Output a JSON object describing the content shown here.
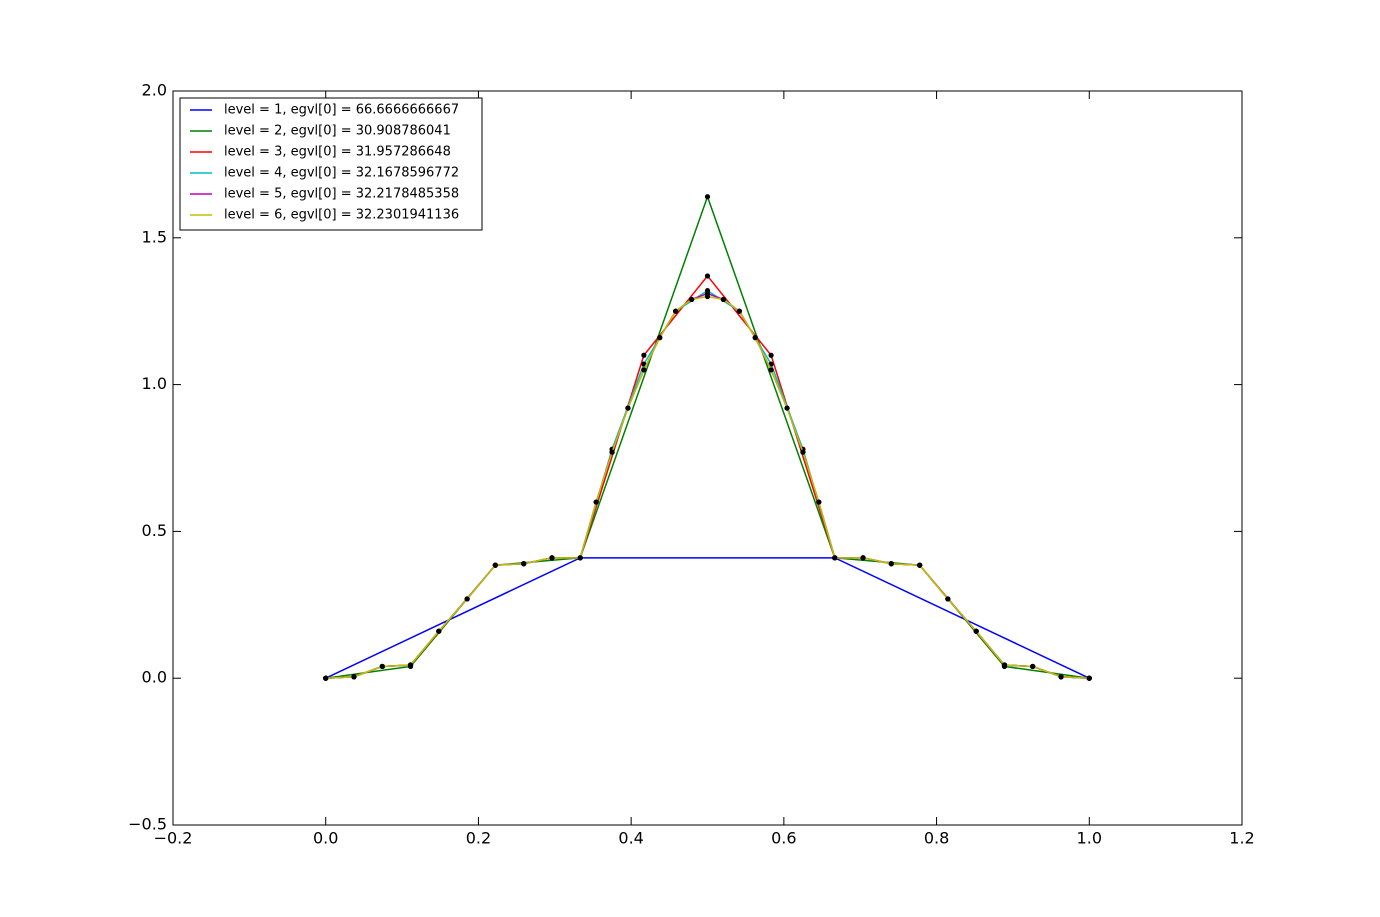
{
  "chart_data": {
    "type": "line",
    "xlim": [
      -0.2,
      1.2
    ],
    "ylim": [
      -0.5,
      2.0
    ],
    "xticks": [
      {
        "value": -0.2,
        "label": "−0.2"
      },
      {
        "value": 0,
        "label": "0.0"
      },
      0.2,
      0.4,
      0.6,
      0.8,
      {
        "value": 1,
        "label": "1.0"
      },
      1.2
    ],
    "yticks": [
      {
        "value": -0.5,
        "label": "−0.5"
      },
      {
        "value": 0,
        "label": "0.0"
      },
      0.5,
      {
        "value": 1,
        "label": "1.0"
      },
      1.5,
      {
        "value": 2,
        "label": "2.0"
      }
    ],
    "legend": "upper left",
    "marker_color": "#000000",
    "series": [
      {
        "name": "level = 1, egvl[0] = 66.6666666667",
        "color": "#0000ff",
        "x": [
          0,
          0.3333,
          0.6667,
          1
        ],
        "values": [
          0,
          0.41,
          0.41,
          0
        ]
      },
      {
        "name": "level = 2, egvl[0] = 30.908786041",
        "color": "#008000",
        "x": [
          0,
          0.1111,
          0.2222,
          0.3333,
          0.5,
          0.6667,
          0.7778,
          0.8889,
          1
        ],
        "values": [
          0,
          0.04,
          0.385,
          0.41,
          1.64,
          0.41,
          0.385,
          0.04,
          0
        ]
      },
      {
        "name": "level = 3, egvl[0] = 31.957286648",
        "color": "#ff0000",
        "x": [
          0,
          0.037,
          0.0741,
          0.1111,
          0.2222,
          0.2593,
          0.2963,
          0.3333,
          0.4167,
          0.5,
          0.5833,
          0.6667,
          0.7037,
          0.7407,
          0.7778,
          0.8889,
          0.9259,
          0.963,
          1
        ],
        "values": [
          0,
          0.005,
          0.04,
          0.045,
          0.385,
          0.39,
          0.41,
          0.41,
          1.1,
          1.37,
          1.1,
          0.41,
          0.41,
          0.39,
          0.385,
          0.045,
          0.04,
          0.005,
          0
        ]
      },
      {
        "name": "level = 4, egvl[0] = 32.1678596772",
        "color": "#00bfbf",
        "x": [
          0,
          0.037,
          0.0741,
          0.1111,
          0.1481,
          0.1852,
          0.2222,
          0.2593,
          0.2963,
          0.3333,
          0.375,
          0.4167,
          0.4583,
          0.5,
          0.5417,
          0.5833,
          0.625,
          0.6667,
          0.7037,
          0.7407,
          0.7778,
          0.8148,
          0.8519,
          0.8889,
          0.9259,
          0.963,
          1
        ],
        "values": [
          0,
          0.005,
          0.04,
          0.045,
          0.16,
          0.27,
          0.385,
          0.39,
          0.41,
          0.41,
          0.78,
          1.07,
          1.25,
          1.32,
          1.25,
          1.07,
          0.78,
          0.41,
          0.41,
          0.39,
          0.385,
          0.27,
          0.16,
          0.045,
          0.04,
          0.005,
          0
        ]
      },
      {
        "name": "level = 5, egvl[0] = 32.2178485358",
        "color": "#bf00bf",
        "x": [
          0,
          0.037,
          0.0741,
          0.1111,
          0.1481,
          0.1852,
          0.2222,
          0.2593,
          0.2963,
          0.3333,
          0.3542,
          0.375,
          0.3958,
          0.4167,
          0.4375,
          0.4583,
          0.4792,
          0.5,
          0.5208,
          0.5417,
          0.5625,
          0.5833,
          0.6042,
          0.625,
          0.6458,
          0.6667,
          0.7037,
          0.7407,
          0.7778,
          0.8148,
          0.8519,
          0.8889,
          0.9259,
          0.963,
          1
        ],
        "values": [
          0,
          0.005,
          0.04,
          0.045,
          0.16,
          0.27,
          0.385,
          0.39,
          0.41,
          0.41,
          0.6,
          0.77,
          0.92,
          1.05,
          1.16,
          1.25,
          1.29,
          1.31,
          1.29,
          1.25,
          1.16,
          1.05,
          0.92,
          0.77,
          0.6,
          0.41,
          0.41,
          0.39,
          0.385,
          0.27,
          0.16,
          0.045,
          0.04,
          0.005,
          0
        ]
      },
      {
        "name": "level = 6, egvl[0] = 32.2301941136",
        "color": "#bfbf00",
        "x": [
          0,
          0.037,
          0.0741,
          0.1111,
          0.1481,
          0.1852,
          0.2222,
          0.2593,
          0.2963,
          0.3333,
          0.3542,
          0.375,
          0.3958,
          0.4167,
          0.4375,
          0.4583,
          0.4792,
          0.5,
          0.5208,
          0.5417,
          0.5625,
          0.5833,
          0.6042,
          0.625,
          0.6458,
          0.6667,
          0.7037,
          0.7407,
          0.7778,
          0.8148,
          0.8519,
          0.8889,
          0.9259,
          0.963,
          1
        ],
        "values": [
          0,
          0.005,
          0.04,
          0.045,
          0.16,
          0.27,
          0.385,
          0.39,
          0.41,
          0.41,
          0.6,
          0.77,
          0.92,
          1.05,
          1.16,
          1.25,
          1.29,
          1.3,
          1.29,
          1.25,
          1.16,
          1.05,
          0.92,
          0.77,
          0.6,
          0.41,
          0.41,
          0.39,
          0.385,
          0.27,
          0.16,
          0.045,
          0.04,
          0.005,
          0
        ]
      }
    ]
  }
}
